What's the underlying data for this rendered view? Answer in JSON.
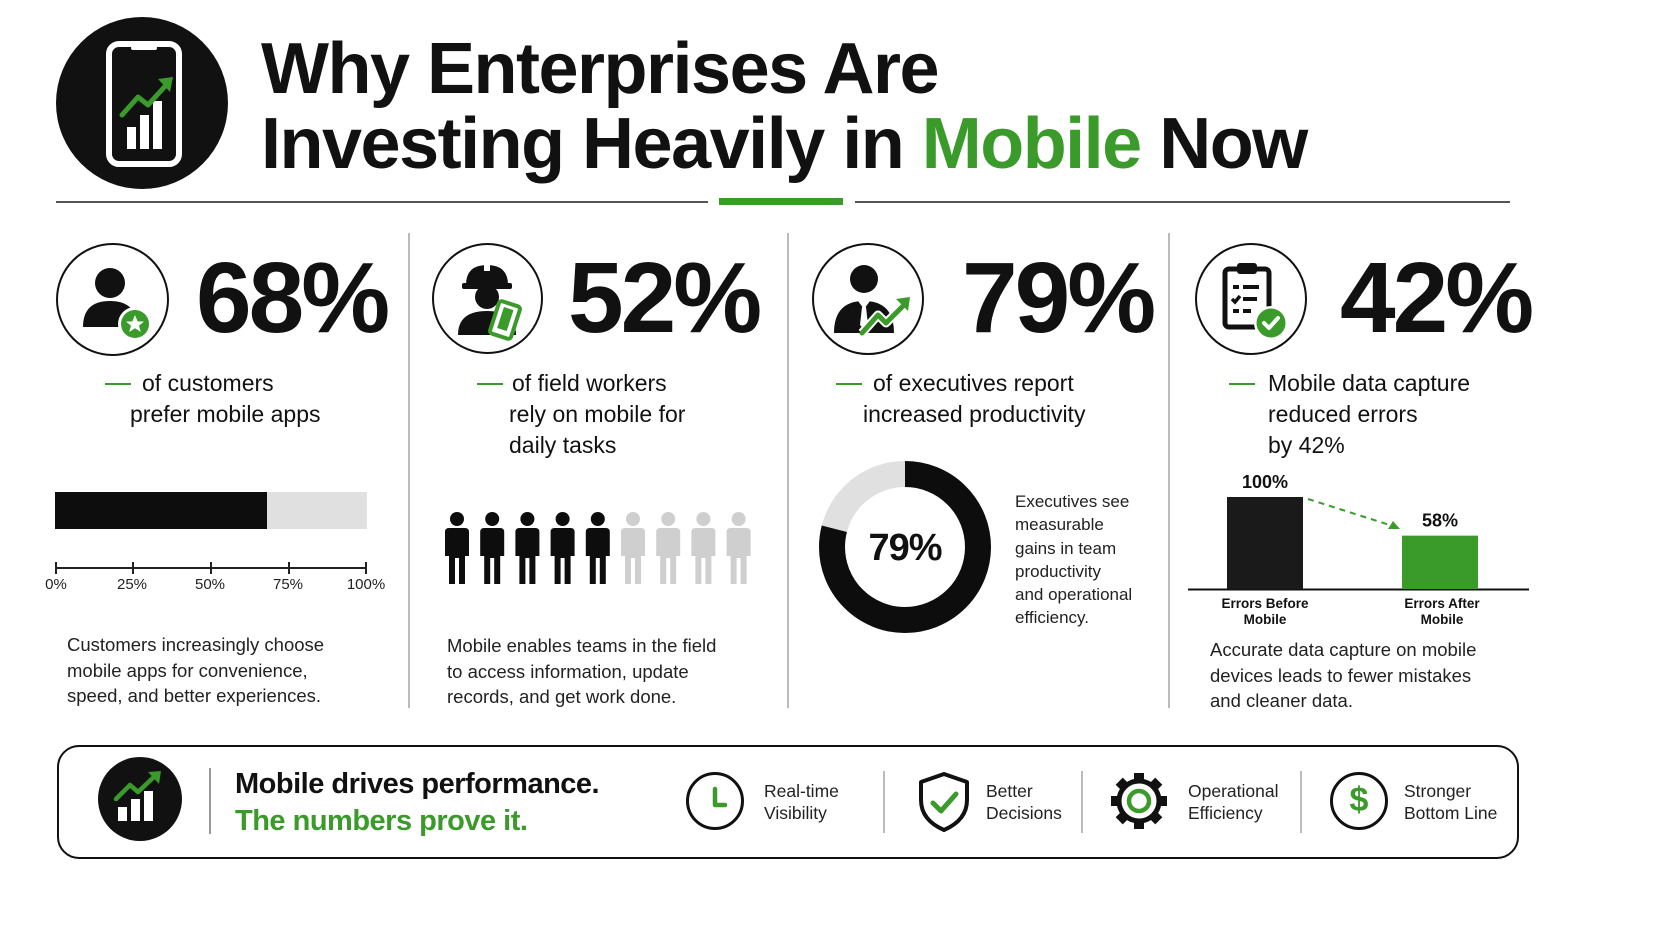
{
  "title": {
    "line1": "Why Enterprises Are",
    "line2_prefix": "Investing Heavily in ",
    "line2_highlight": "Mobile",
    "line2_suffix": " Now"
  },
  "colors": {
    "accent": "#3a9a2a",
    "dark": "#111111",
    "light_gray": "#e0e0e0"
  },
  "stats": [
    {
      "icon": "customer-star-icon",
      "value": "68%",
      "label_lines": [
        "of customers",
        "prefer mobile apps"
      ],
      "progress": 0.68,
      "scale_ticks": [
        "0%",
        "25%",
        "50%",
        "75%",
        "100%"
      ],
      "description": [
        "Customers increasingly choose",
        "mobile apps for convenience,",
        "speed, and better experiences."
      ]
    },
    {
      "icon": "field-worker-tablet-icon",
      "value": "52%",
      "label_lines": [
        "of field workers",
        "rely on mobile for",
        "daily tasks"
      ],
      "people_total": 9,
      "people_highlighted": 5,
      "description": [
        "Mobile enables teams in the field",
        "to access information, update",
        "records, and get work done."
      ]
    },
    {
      "icon": "executive-growth-icon",
      "value": "79%",
      "label_lines": [
        "of executives report",
        "increased productivity"
      ],
      "donut_value": "79%",
      "donut_fraction": 0.79,
      "side_text": [
        "Executives see",
        "measurable",
        "gains in team",
        "productivity",
        "and operational",
        "efficiency."
      ]
    },
    {
      "icon": "clipboard-check-icon",
      "value": "42%",
      "label_lines": [
        "Mobile data capture",
        "reduced errors",
        "by 42%"
      ],
      "bars": [
        {
          "label_lines": [
            "Errors Before",
            "Mobile"
          ],
          "value": 100,
          "value_label": "100%",
          "color": "#1a1a1a"
        },
        {
          "label_lines": [
            "Errors After",
            "Mobile"
          ],
          "value": 58,
          "value_label": "58%",
          "color": "#3a9a2a"
        }
      ],
      "description": [
        "Accurate data capture on mobile",
        "devices leads to fewer mistakes",
        "and cleaner data."
      ]
    }
  ],
  "footer": {
    "icon": "growth-chart-icon",
    "headline": "Mobile drives performance.",
    "subline": "The numbers prove it.",
    "benefits": [
      {
        "icon": "clock-icon",
        "lines": [
          "Real-time",
          "Visibility"
        ]
      },
      {
        "icon": "shield-check-icon",
        "lines": [
          "Better",
          "Decisions"
        ]
      },
      {
        "icon": "gear-icon",
        "lines": [
          "Operational",
          "Efficiency"
        ]
      },
      {
        "icon": "dollar-icon",
        "lines": [
          "Stronger",
          "Bottom Line"
        ]
      }
    ]
  }
}
